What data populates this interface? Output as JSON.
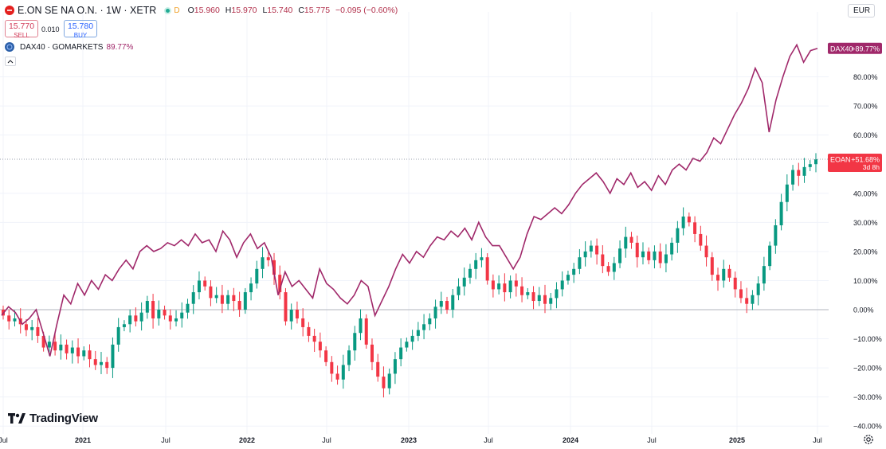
{
  "symbol": {
    "name": "E.ON SE NA O.N. · 1W · XETR",
    "status": "D",
    "ohlc": [
      {
        "key": "O",
        "value": "15.960"
      },
      {
        "key": "H",
        "value": "15.970"
      },
      {
        "key": "L",
        "value": "15.740"
      },
      {
        "key": "C",
        "value": "15.775"
      },
      {
        "key": "",
        "value": "−0.095 (−0.60%)"
      }
    ],
    "logo_color": "#e4201e"
  },
  "trade": {
    "sell_price": "15.770",
    "sell_label": "SELL",
    "spread": "0.010",
    "buy_price": "15.780",
    "buy_label": "BUY"
  },
  "compare": {
    "name": "DAX40 · GOMARKETS",
    "value": "89.77%"
  },
  "currency": "EUR",
  "branding": "TradingView",
  "colors": {
    "up": "#089981",
    "down": "#f23645",
    "compare_line": "#a0286a",
    "zero_line": "#b2b5be"
  },
  "chart_data": {
    "type": "line",
    "scale": "percent",
    "x_ticks": [
      "Jul",
      "2021",
      "Jul",
      "2022",
      "Jul",
      "2023",
      "Jul",
      "2024",
      "Jul",
      "2025",
      "Jul"
    ],
    "y_ticks": [
      "−40.00%",
      "−30.00%",
      "−20.00%",
      "−10.00%",
      "0.00%",
      "10.00%",
      "20.00%",
      "30.00%",
      "40.00%",
      "60.00%",
      "70.00%",
      "80.00%"
    ],
    "ylim": [
      -40,
      95
    ],
    "series": [
      {
        "name": "DAX40",
        "kind": "line",
        "label": "DAX40",
        "last_label": "+89.77%",
        "color": "#a0286a",
        "points": [
          [
            0,
            -2
          ],
          [
            1,
            1
          ],
          [
            2,
            -1
          ],
          [
            3,
            -5
          ],
          [
            4,
            -3
          ],
          [
            5,
            0
          ],
          [
            6,
            -8
          ],
          [
            7,
            -16
          ],
          [
            8,
            -5
          ],
          [
            9,
            5
          ],
          [
            10,
            2
          ],
          [
            11,
            9
          ],
          [
            12,
            5
          ],
          [
            13,
            10
          ],
          [
            14,
            7
          ],
          [
            15,
            12
          ],
          [
            16,
            10
          ],
          [
            17,
            14
          ],
          [
            18,
            17
          ],
          [
            19,
            14
          ],
          [
            20,
            20
          ],
          [
            21,
            22
          ],
          [
            22,
            20
          ],
          [
            23,
            21
          ],
          [
            24,
            23
          ],
          [
            25,
            22
          ],
          [
            26,
            24
          ],
          [
            27,
            22
          ],
          [
            28,
            26
          ],
          [
            29,
            23
          ],
          [
            30,
            24
          ],
          [
            31,
            20
          ],
          [
            32,
            27
          ],
          [
            33,
            24
          ],
          [
            34,
            18
          ],
          [
            35,
            23
          ],
          [
            36,
            26
          ],
          [
            37,
            21
          ],
          [
            38,
            23
          ],
          [
            39,
            18
          ],
          [
            40,
            5
          ],
          [
            41,
            13
          ],
          [
            42,
            8
          ],
          [
            43,
            10
          ],
          [
            44,
            7
          ],
          [
            45,
            4
          ],
          [
            46,
            14
          ],
          [
            47,
            9
          ],
          [
            48,
            7
          ],
          [
            49,
            4
          ],
          [
            50,
            2
          ],
          [
            51,
            5
          ],
          [
            52,
            10
          ],
          [
            53,
            8
          ],
          [
            54,
            -2
          ],
          [
            55,
            3
          ],
          [
            56,
            8
          ],
          [
            57,
            14
          ],
          [
            58,
            19
          ],
          [
            59,
            16
          ],
          [
            60,
            20
          ],
          [
            61,
            18
          ],
          [
            62,
            22
          ],
          [
            63,
            25
          ],
          [
            64,
            24
          ],
          [
            65,
            27
          ],
          [
            66,
            25
          ],
          [
            67,
            28
          ],
          [
            68,
            24
          ],
          [
            69,
            30
          ],
          [
            70,
            25
          ],
          [
            71,
            22
          ],
          [
            72,
            22
          ],
          [
            73,
            18
          ],
          [
            74,
            14
          ],
          [
            75,
            18
          ],
          [
            76,
            26
          ],
          [
            77,
            32
          ],
          [
            78,
            31
          ],
          [
            79,
            33
          ],
          [
            80,
            35
          ],
          [
            81,
            33
          ],
          [
            82,
            36
          ],
          [
            83,
            40
          ],
          [
            84,
            43
          ],
          [
            85,
            45
          ],
          [
            86,
            47
          ],
          [
            87,
            44
          ],
          [
            88,
            40
          ],
          [
            89,
            45
          ],
          [
            90,
            43
          ],
          [
            91,
            47
          ],
          [
            92,
            42
          ],
          [
            93,
            44
          ],
          [
            94,
            41
          ],
          [
            95,
            46
          ],
          [
            96,
            43
          ],
          [
            97,
            48
          ],
          [
            98,
            50
          ],
          [
            99,
            48
          ],
          [
            100,
            52
          ],
          [
            101,
            51
          ],
          [
            102,
            54
          ],
          [
            103,
            59
          ],
          [
            104,
            57
          ],
          [
            105,
            62
          ],
          [
            106,
            67
          ],
          [
            107,
            71
          ],
          [
            108,
            76
          ],
          [
            109,
            83
          ],
          [
            110,
            78
          ],
          [
            111,
            61
          ],
          [
            112,
            72
          ],
          [
            113,
            80
          ],
          [
            114,
            87
          ],
          [
            115,
            91
          ],
          [
            116,
            85
          ],
          [
            117,
            89
          ],
          [
            118,
            89.77
          ]
        ]
      },
      {
        "name": "EOAN",
        "kind": "candlestick",
        "label": "EOAN",
        "last_label": "+51.68%",
        "countdown": "3d 8h",
        "close": [
          -2,
          -4,
          -3,
          -5,
          -7,
          -6,
          -9,
          -13,
          -11,
          -14,
          -12,
          -15,
          -13,
          -16,
          -14,
          -17,
          -19,
          -18,
          -20,
          -12,
          -6,
          -5,
          -2,
          -4,
          -1,
          3,
          -3,
          0,
          -2,
          -4,
          -3,
          -1,
          2,
          6,
          10,
          8,
          4,
          5,
          2,
          5,
          3,
          0,
          6,
          9,
          14,
          18,
          17,
          12,
          6,
          -4,
          0,
          -3,
          -6,
          -9,
          -11,
          -14,
          -18,
          -22,
          -24,
          -19,
          -14,
          -8,
          -3,
          -12,
          -18,
          -23,
          -27,
          -22,
          -17,
          -13,
          -11,
          -9,
          -7,
          -5,
          -3,
          1,
          3,
          0,
          5,
          8,
          11,
          14,
          17,
          18,
          10,
          7,
          9,
          6,
          10,
          8,
          5,
          6,
          3,
          5,
          2,
          4,
          7,
          10,
          12,
          14,
          18,
          20,
          22,
          19,
          15,
          13,
          16,
          21,
          25,
          23,
          18,
          20,
          17,
          20,
          16,
          19,
          23,
          28,
          32,
          30,
          26,
          22,
          18,
          12,
          10,
          14,
          11,
          7,
          4,
          2,
          5,
          9,
          15,
          22,
          29,
          37,
          43,
          48,
          46,
          49,
          50,
          51.68
        ]
      }
    ]
  }
}
